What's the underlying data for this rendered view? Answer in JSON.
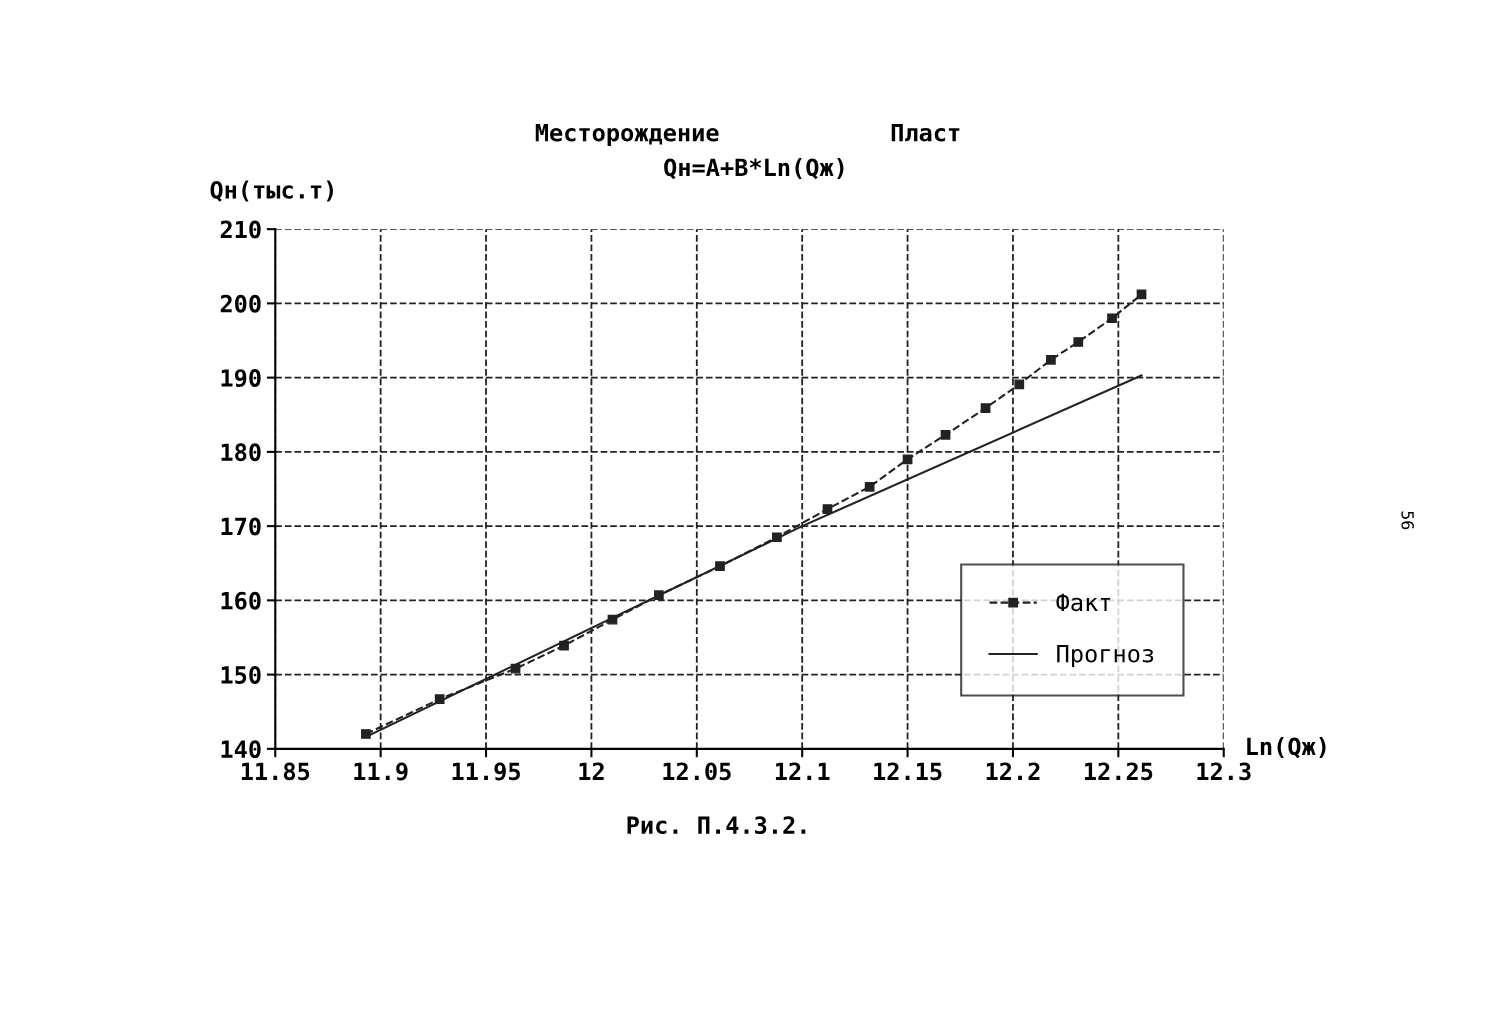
{
  "chart_data": {
    "type": "line",
    "title": "Месторождение            Пласт",
    "subtitle": "Qн=A+B*Ln(Qж)",
    "xlabel": "Ln(Qж)",
    "ylabel": "Qн(тыс.т)",
    "annotations": [
      "Рис. П.4.3.2.",
      "56"
    ],
    "xlim": [
      11.85,
      12.3
    ],
    "xticks": [
      11.85,
      11.9,
      11.95,
      12,
      12.05,
      12.1,
      12.15,
      12.2,
      12.25,
      12.3
    ],
    "ylim": [
      140,
      210
    ],
    "yticks": [
      140,
      150,
      160,
      170,
      180,
      190,
      200,
      210
    ],
    "grid": true,
    "legend": "bottom right",
    "series": [
      {
        "name": "Факт",
        "color": "#222222",
        "marker": "square",
        "line_style": "dashed",
        "x": [
          11.893,
          11.928,
          11.964,
          11.987,
          12.01,
          12.032,
          12.061,
          12.088,
          12.112,
          12.132,
          12.15,
          12.168,
          12.187,
          12.203,
          12.218,
          12.231,
          12.247,
          12.261
        ],
        "values": [
          142.0,
          146.7,
          150.8,
          153.9,
          157.4,
          160.7,
          164.6,
          168.5,
          172.3,
          175.3,
          179.0,
          182.3,
          185.9,
          189.1,
          192.4,
          194.8,
          198.0,
          201.2
        ]
      },
      {
        "name": "Прогноз",
        "color": "#222222",
        "marker": "none",
        "line_style": "solid",
        "x": [
          11.893,
          12.1,
          12.261
        ],
        "values": [
          141.6,
          170.0,
          190.3
        ]
      }
    ]
  }
}
